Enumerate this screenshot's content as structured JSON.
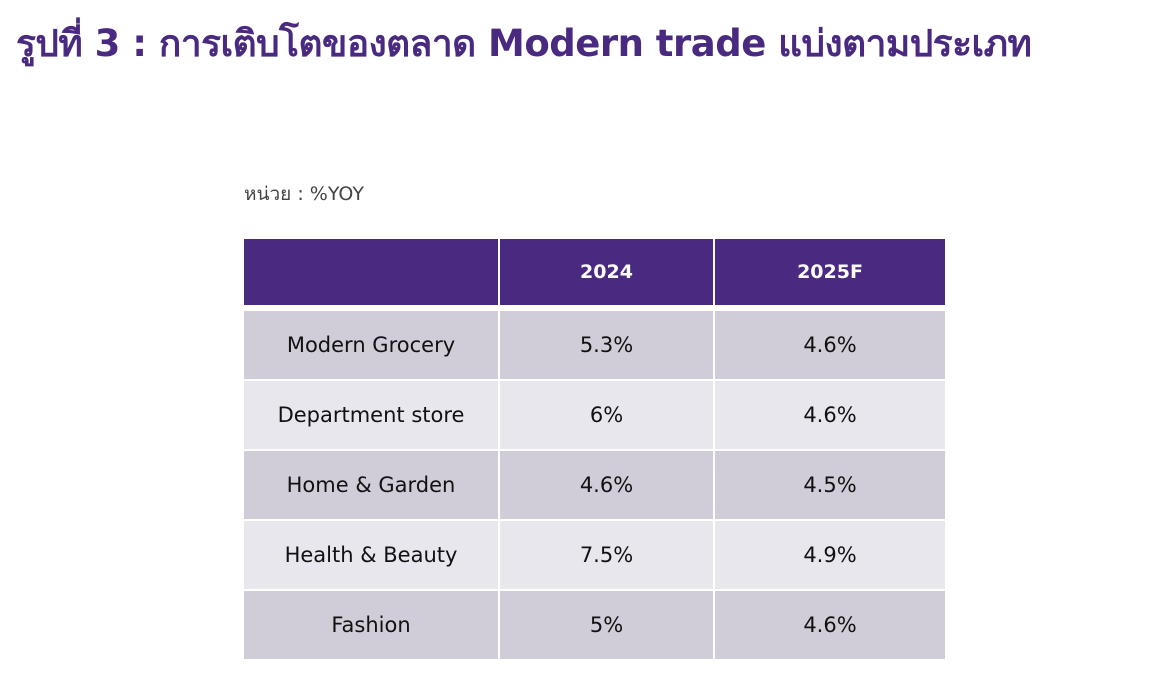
{
  "title": "รูปที่ 3 : การเติบโตของตลาด Modern trade แบ่งตามประเภท",
  "unit_note": "หน่วย : %YOY",
  "table": {
    "header": [
      "",
      "2024",
      "2025F"
    ],
    "rows": [
      [
        "Modern Grocery",
        "5.3%",
        "4.6%"
      ],
      [
        "Department store",
        "6%",
        "4.6%"
      ],
      [
        "Home & Garden",
        "4.6%",
        "4.5%"
      ],
      [
        "Health & Beauty",
        "7.5%",
        "4.9%"
      ],
      [
        "Fashion",
        "5%",
        "4.6%"
      ]
    ]
  },
  "colors": {
    "title": "#4a2a80",
    "header_bg": "#4a2a80",
    "row_dark": "#d0ccd8",
    "row_light": "#e9e7ee"
  }
}
